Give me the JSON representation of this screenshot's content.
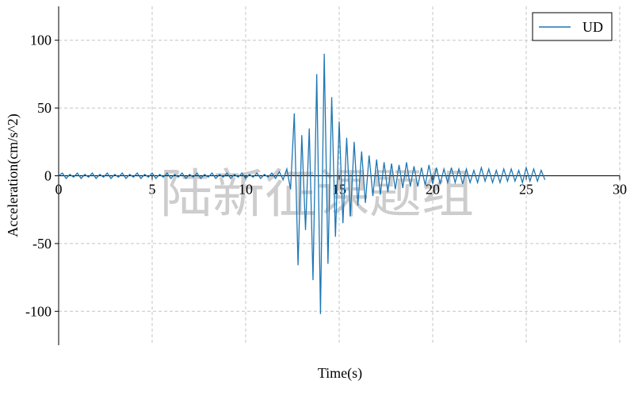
{
  "chart_data": {
    "type": "line",
    "xlabel": "Time(s)",
    "ylabel": "Acceleration(cm/s^2)",
    "x": [
      0,
      0.2,
      0.4,
      0.6,
      0.8,
      1,
      1.2,
      1.4,
      1.6,
      1.8,
      2,
      2.2,
      2.4,
      2.6,
      2.8,
      3,
      3.2,
      3.4,
      3.6,
      3.8,
      4,
      4.2,
      4.4,
      4.6,
      4.8,
      5,
      5.2,
      5.4,
      5.6,
      5.8,
      6,
      6.2,
      6.4,
      6.6,
      6.8,
      7,
      7.2,
      7.4,
      7.6,
      7.8,
      8,
      8.2,
      8.4,
      8.6,
      8.8,
      9,
      9.2,
      9.4,
      9.6,
      9.8,
      10,
      10.2,
      10.4,
      10.6,
      10.8,
      11,
      11.2,
      11.4,
      11.6,
      11.8,
      12,
      12.2,
      12.4,
      12.6,
      12.8,
      13,
      13.2,
      13.4,
      13.6,
      13.8,
      14,
      14.2,
      14.4,
      14.6,
      14.8,
      15,
      15.2,
      15.4,
      15.6,
      15.8,
      16,
      16.2,
      16.4,
      16.6,
      16.8,
      17,
      17.2,
      17.4,
      17.6,
      17.8,
      18,
      18.2,
      18.4,
      18.6,
      18.8,
      19,
      19.2,
      19.4,
      19.6,
      19.8,
      20,
      20.2,
      20.4,
      20.6,
      20.8,
      21,
      21.2,
      21.4,
      21.6,
      21.8,
      22,
      22.2,
      22.4,
      22.6,
      22.8,
      23,
      23.2,
      23.4,
      23.6,
      23.8,
      24,
      24.2,
      24.4,
      24.6,
      24.8,
      25,
      25.2,
      25.4,
      25.6,
      25.8,
      26
    ],
    "series": [
      {
        "name": "UD",
        "color": "#1f77b4",
        "values": [
          0,
          2,
          -2,
          1,
          -1,
          2,
          -2,
          1,
          -1,
          2,
          -2,
          1,
          -1,
          2,
          -2,
          1,
          -1,
          2,
          -2,
          1,
          -1,
          2,
          -2,
          1,
          -1,
          2,
          -2,
          1,
          -1,
          2,
          -2,
          1,
          -1,
          2,
          -2,
          1,
          -1,
          2,
          -2,
          1,
          -1,
          2,
          -2,
          1,
          -1,
          2,
          -2,
          1,
          -1,
          2,
          -2,
          1,
          -1,
          2,
          -2,
          1,
          -1,
          2,
          -2,
          3,
          -3,
          5,
          -10,
          46,
          -66,
          30,
          -40,
          35,
          -77,
          75,
          -102,
          90,
          -65,
          58,
          -45,
          40,
          -35,
          28,
          -30,
          25,
          -22,
          18,
          -20,
          15,
          -15,
          12,
          -14,
          10,
          -12,
          9,
          -10,
          8,
          -9,
          10,
          -8,
          7,
          -8,
          6,
          -7,
          8,
          -6,
          6,
          -6,
          5,
          -5,
          6,
          -5,
          5,
          -6,
          5,
          -5,
          4,
          -5,
          6,
          -4,
          5,
          -5,
          4,
          -5,
          5,
          -4,
          5,
          -4,
          4,
          -5,
          6,
          -4,
          5,
          -4,
          4,
          -3
        ]
      }
    ],
    "xlim": [
      0,
      30
    ],
    "xticks": [
      0,
      5,
      10,
      15,
      20,
      25,
      30
    ],
    "ylim": [
      -125,
      125
    ],
    "yticks": [
      -100,
      -50,
      0,
      50,
      100
    ],
    "grid": true,
    "legend": "upper right"
  },
  "watermark": "陆新征课题组"
}
